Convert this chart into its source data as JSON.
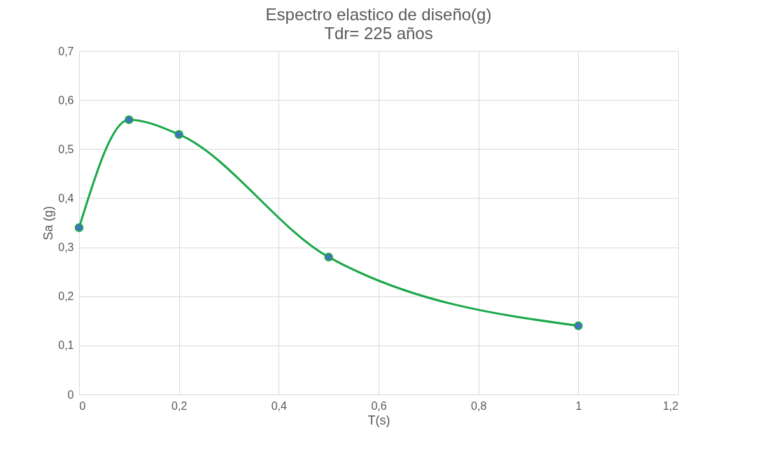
{
  "chart_data": {
    "type": "line",
    "title": "Espectro elastico de diseño(g)",
    "subtitle": "Tdr= 225 años",
    "xlabel": "T(s)",
    "ylabel": "Sa (g)",
    "series": [
      {
        "color": "#1aa84a",
        "x": [
          0,
          0.1,
          0.2,
          0.5,
          1
        ],
        "values": [
          0.34,
          0.56,
          0.53,
          0.28,
          0.14
        ]
      }
    ],
    "xlim": [
      0,
      1.2
    ],
    "ylim": [
      0,
      0.7
    ],
    "xticks": [
      0,
      {
        "value": 0.2,
        "label": "0,2"
      },
      {
        "value": 0.4,
        "label": "0,4"
      },
      {
        "value": 0.6,
        "label": "0,6"
      },
      {
        "value": 0.8,
        "label": "0,8"
      },
      1,
      {
        "value": 1.2,
        "label": "1,2"
      }
    ],
    "yticks": [
      0,
      {
        "value": 0.1,
        "label": "0,1"
      },
      {
        "value": 0.2,
        "label": "0,2"
      },
      {
        "value": 0.3,
        "label": "0,3"
      },
      {
        "value": 0.4,
        "label": "0,4"
      },
      {
        "value": 0.5,
        "label": "0,5"
      },
      {
        "value": 0.6,
        "label": "0,6"
      },
      {
        "value": 0.7,
        "label": "0,7"
      }
    ],
    "grid": true,
    "marker": "circle",
    "line_style": "solid"
  }
}
